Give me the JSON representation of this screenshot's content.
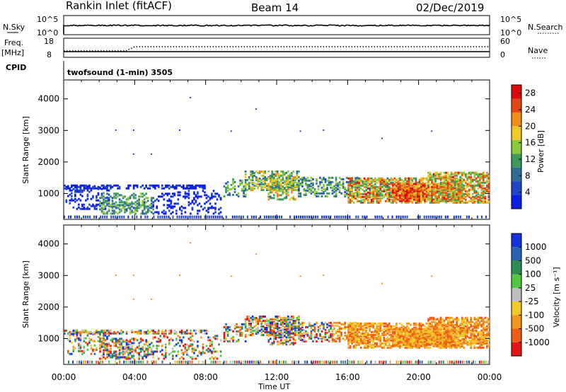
{
  "header": {
    "station": "Rankin Inlet (fitACF)",
    "beam": "Beam 14",
    "date": "02/Dec/2019"
  },
  "top_panels": {
    "nsky_label": "N.Sky",
    "nsky_ticks": [
      "10^5",
      "10^0"
    ],
    "nsearch_label": "N.Search",
    "freq_label_1": "Freq.",
    "freq_label_2": "[MHz]",
    "freq_ticks": [
      "18",
      "8"
    ],
    "nave_label": "Nave",
    "nave_ticks": [
      "60",
      "0"
    ],
    "cpid_label": "CPID",
    "cpid_value": "twofsound (1-min) 3505"
  },
  "chart_data": [
    {
      "type": "heatmap",
      "panel": "power",
      "ylabel": "Slant Range [km]",
      "xlabel": "",
      "x_ticks": [
        "00:00",
        "04:00",
        "08:00",
        "12:00",
        "16:00",
        "20:00",
        "00:00"
      ],
      "xlim_hours": [
        0,
        24
      ],
      "y_ticks": [
        1000,
        2000,
        3000,
        4000
      ],
      "ylim_km": [
        180,
        4600
      ],
      "colorbar": {
        "label": "Power [dB]",
        "ticks": [
          4,
          8,
          12,
          16,
          20,
          24,
          28
        ],
        "range": [
          0,
          30
        ],
        "colors": [
          "#0a1ee6",
          "#1e46c8",
          "#2e6e96",
          "#3c9a5a",
          "#8cc83c",
          "#f0c828",
          "#f08c14",
          "#e64614",
          "#dc0a0a"
        ]
      },
      "scatter_points_km": [
        [
          2.9,
          3030
        ],
        [
          3.9,
          3030
        ],
        [
          3.9,
          2270
        ],
        [
          4.9,
          2270
        ],
        [
          6.5,
          3030
        ],
        [
          7.1,
          4060
        ],
        [
          9.4,
          3000
        ],
        [
          10.8,
          3700
        ],
        [
          13.3,
          3000
        ],
        [
          14.6,
          3030
        ],
        [
          17.9,
          2770
        ],
        [
          20.7,
          3000
        ]
      ]
    },
    {
      "type": "heatmap",
      "panel": "velocity",
      "ylabel": "Slant Range [km]",
      "xlabel": "Time UT",
      "x_ticks": [
        "00:00",
        "04:00",
        "08:00",
        "12:00",
        "16:00",
        "20:00",
        "00:00"
      ],
      "xlim_hours": [
        0,
        24
      ],
      "y_ticks": [
        1000,
        2000,
        3000,
        4000
      ],
      "ylim_km": [
        180,
        4600
      ],
      "colorbar": {
        "label": "Velocity [m s⁻¹]",
        "ticks": [
          "1000",
          "500",
          "100",
          "25",
          "-25",
          "-100",
          "-500",
          "-1000"
        ],
        "colors": [
          "#1432dc",
          "#2864b4",
          "#2d8c50",
          "#50c840",
          "#bebebe",
          "#f0c828",
          "#f0961e",
          "#f05a14",
          "#e61414"
        ]
      },
      "scatter_points_km": [
        [
          2.9,
          3030
        ],
        [
          3.9,
          3030
        ],
        [
          3.9,
          2270
        ],
        [
          4.9,
          2270
        ],
        [
          6.5,
          3030
        ],
        [
          7.1,
          4060
        ],
        [
          9.4,
          3000
        ],
        [
          10.8,
          3700
        ],
        [
          13.3,
          3000
        ],
        [
          14.6,
          3030
        ],
        [
          17.9,
          2770
        ],
        [
          20.7,
          3000
        ]
      ]
    }
  ]
}
